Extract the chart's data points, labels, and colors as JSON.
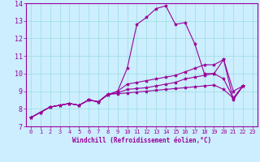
{
  "xlabel": "Windchill (Refroidissement éolien,°C)",
  "bg_color": "#cceeff",
  "grid_color": "#99dddd",
  "line_color": "#990099",
  "xlim": [
    -0.5,
    23.5
  ],
  "ylim": [
    7,
    14
  ],
  "xticks": [
    0,
    1,
    2,
    3,
    4,
    5,
    6,
    7,
    8,
    9,
    10,
    11,
    12,
    13,
    14,
    15,
    16,
    17,
    18,
    19,
    20,
    21,
    22,
    23
  ],
  "yticks": [
    7,
    8,
    9,
    10,
    11,
    12,
    13,
    14
  ],
  "lines": [
    [
      7.5,
      7.8,
      8.1,
      8.2,
      8.3,
      8.2,
      8.5,
      8.4,
      8.8,
      9.0,
      10.3,
      12.8,
      13.2,
      13.7,
      13.85,
      12.8,
      12.9,
      11.7,
      10.0,
      10.0,
      10.8,
      8.5,
      9.3
    ],
    [
      7.5,
      7.8,
      8.1,
      8.2,
      8.3,
      8.2,
      8.5,
      8.4,
      8.8,
      9.0,
      9.4,
      9.5,
      9.6,
      9.7,
      9.8,
      9.9,
      10.1,
      10.3,
      10.5,
      10.5,
      10.8,
      9.0,
      9.3
    ],
    [
      7.5,
      7.8,
      8.1,
      8.2,
      8.3,
      8.2,
      8.5,
      8.4,
      8.8,
      8.9,
      9.1,
      9.15,
      9.2,
      9.3,
      9.4,
      9.5,
      9.7,
      9.8,
      9.9,
      10.0,
      9.7,
      8.6,
      9.3
    ],
    [
      7.5,
      7.8,
      8.1,
      8.2,
      8.3,
      8.2,
      8.5,
      8.4,
      8.85,
      8.85,
      8.9,
      8.95,
      9.0,
      9.05,
      9.1,
      9.15,
      9.2,
      9.25,
      9.3,
      9.35,
      9.1,
      8.6,
      9.3
    ]
  ],
  "tick_fontsize": 5,
  "xlabel_fontsize": 5,
  "marker_size": 3,
  "linewidth": 0.8
}
